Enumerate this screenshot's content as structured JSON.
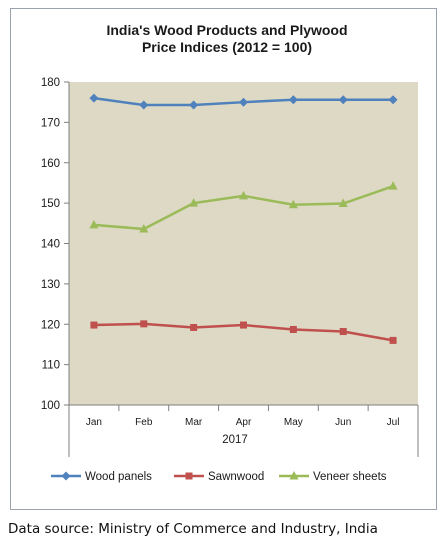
{
  "chart_data": {
    "type": "line",
    "title_lines": [
      "India's Wood Products and Plywood",
      "Price Indices (2012 = 100)"
    ],
    "categories": [
      "Jan",
      "Feb",
      "Mar",
      "Apr",
      "May",
      "Jun",
      "Jul"
    ],
    "x_group_label": "2017",
    "ylim": [
      100,
      180
    ],
    "yticks": [
      100,
      110,
      120,
      130,
      140,
      150,
      160,
      170,
      180
    ],
    "grid": false,
    "legend_position": "bottom",
    "plot_background": "#ddd9c4",
    "series": [
      {
        "name": "Wood panels",
        "color": "#4f81bd",
        "marker": "diamond",
        "values": [
          176.0,
          174.3,
          174.3,
          175.0,
          175.6,
          175.6,
          175.6
        ]
      },
      {
        "name": "Sawnwood",
        "color": "#c0504d",
        "marker": "square",
        "values": [
          119.8,
          120.1,
          119.2,
          119.8,
          118.7,
          118.2,
          116.0
        ]
      },
      {
        "name": "Veneer sheets",
        "color": "#9bbb59",
        "marker": "triangle",
        "values": [
          144.6,
          143.6,
          150.0,
          151.8,
          149.6,
          149.9,
          154.2
        ]
      }
    ]
  },
  "source_note": "Data source: Ministry of Commerce and Industry, India"
}
